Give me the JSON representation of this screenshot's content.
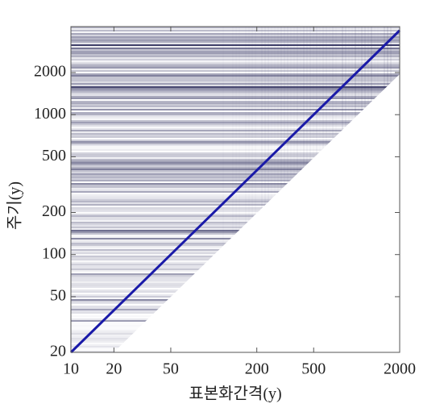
{
  "chart_data": {
    "type": "line",
    "x_label": "표본화간격(y)",
    "y_label": "주기(y)",
    "x": [
      10,
      2000
    ],
    "series": [
      {
        "values": [
          20,
          4000
        ],
        "color": "#1a1aa8"
      }
    ],
    "log_x": true,
    "log_y": true,
    "xlim": [
      10,
      2000
    ],
    "ylim": [
      20,
      4260
    ],
    "xticks": [
      10,
      20,
      50,
      200,
      500,
      2000
    ],
    "yticks": [
      20,
      50,
      100,
      200,
      500,
      1000,
      2000
    ]
  }
}
